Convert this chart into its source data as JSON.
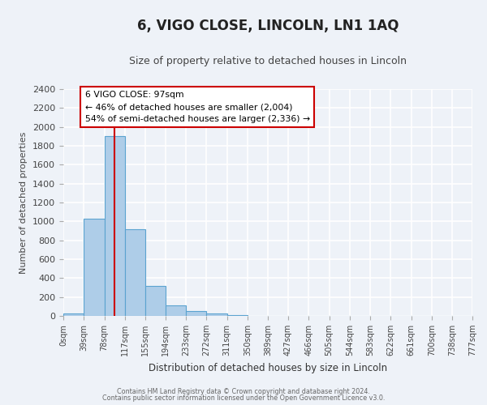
{
  "title": "6, VIGO CLOSE, LINCOLN, LN1 1AQ",
  "subtitle": "Size of property relative to detached houses in Lincoln",
  "xlabel": "Distribution of detached houses by size in Lincoln",
  "ylabel": "Number of detached properties",
  "bar_edges": [
    0,
    39,
    78,
    117,
    155,
    194,
    233,
    272,
    311,
    350,
    389,
    427,
    466,
    505,
    544,
    583,
    622,
    661,
    700,
    738,
    777
  ],
  "bar_heights": [
    25,
    1025,
    1900,
    920,
    315,
    110,
    50,
    30,
    5,
    0,
    0,
    0,
    0,
    0,
    0,
    0,
    0,
    0,
    0,
    0
  ],
  "bar_color": "#aecde8",
  "bar_edge_color": "#5ba3d0",
  "tick_labels": [
    "0sqm",
    "39sqm",
    "78sqm",
    "117sqm",
    "155sqm",
    "194sqm",
    "233sqm",
    "272sqm",
    "311sqm",
    "350sqm",
    "389sqm",
    "427sqm",
    "466sqm",
    "505sqm",
    "544sqm",
    "583sqm",
    "622sqm",
    "661sqm",
    "700sqm",
    "738sqm",
    "777sqm"
  ],
  "ylim": [
    0,
    2400
  ],
  "yticks": [
    0,
    200,
    400,
    600,
    800,
    1000,
    1200,
    1400,
    1600,
    1800,
    2000,
    2200,
    2400
  ],
  "vline_x": 97,
  "vline_color": "#cc0000",
  "annotation_title": "6 VIGO CLOSE: 97sqm",
  "annotation_line1": "← 46% of detached houses are smaller (2,004)",
  "annotation_line2": "54% of semi-detached houses are larger (2,336) →",
  "annotation_box_color": "#ffffff",
  "annotation_box_edge": "#cc0000",
  "footer1": "Contains HM Land Registry data © Crown copyright and database right 2024.",
  "footer2": "Contains public sector information licensed under the Open Government Licence v3.0.",
  "bg_color": "#eef2f8",
  "plot_bg_color": "#eef2f8",
  "grid_color": "#ffffff",
  "title_fontsize": 12,
  "subtitle_fontsize": 9
}
